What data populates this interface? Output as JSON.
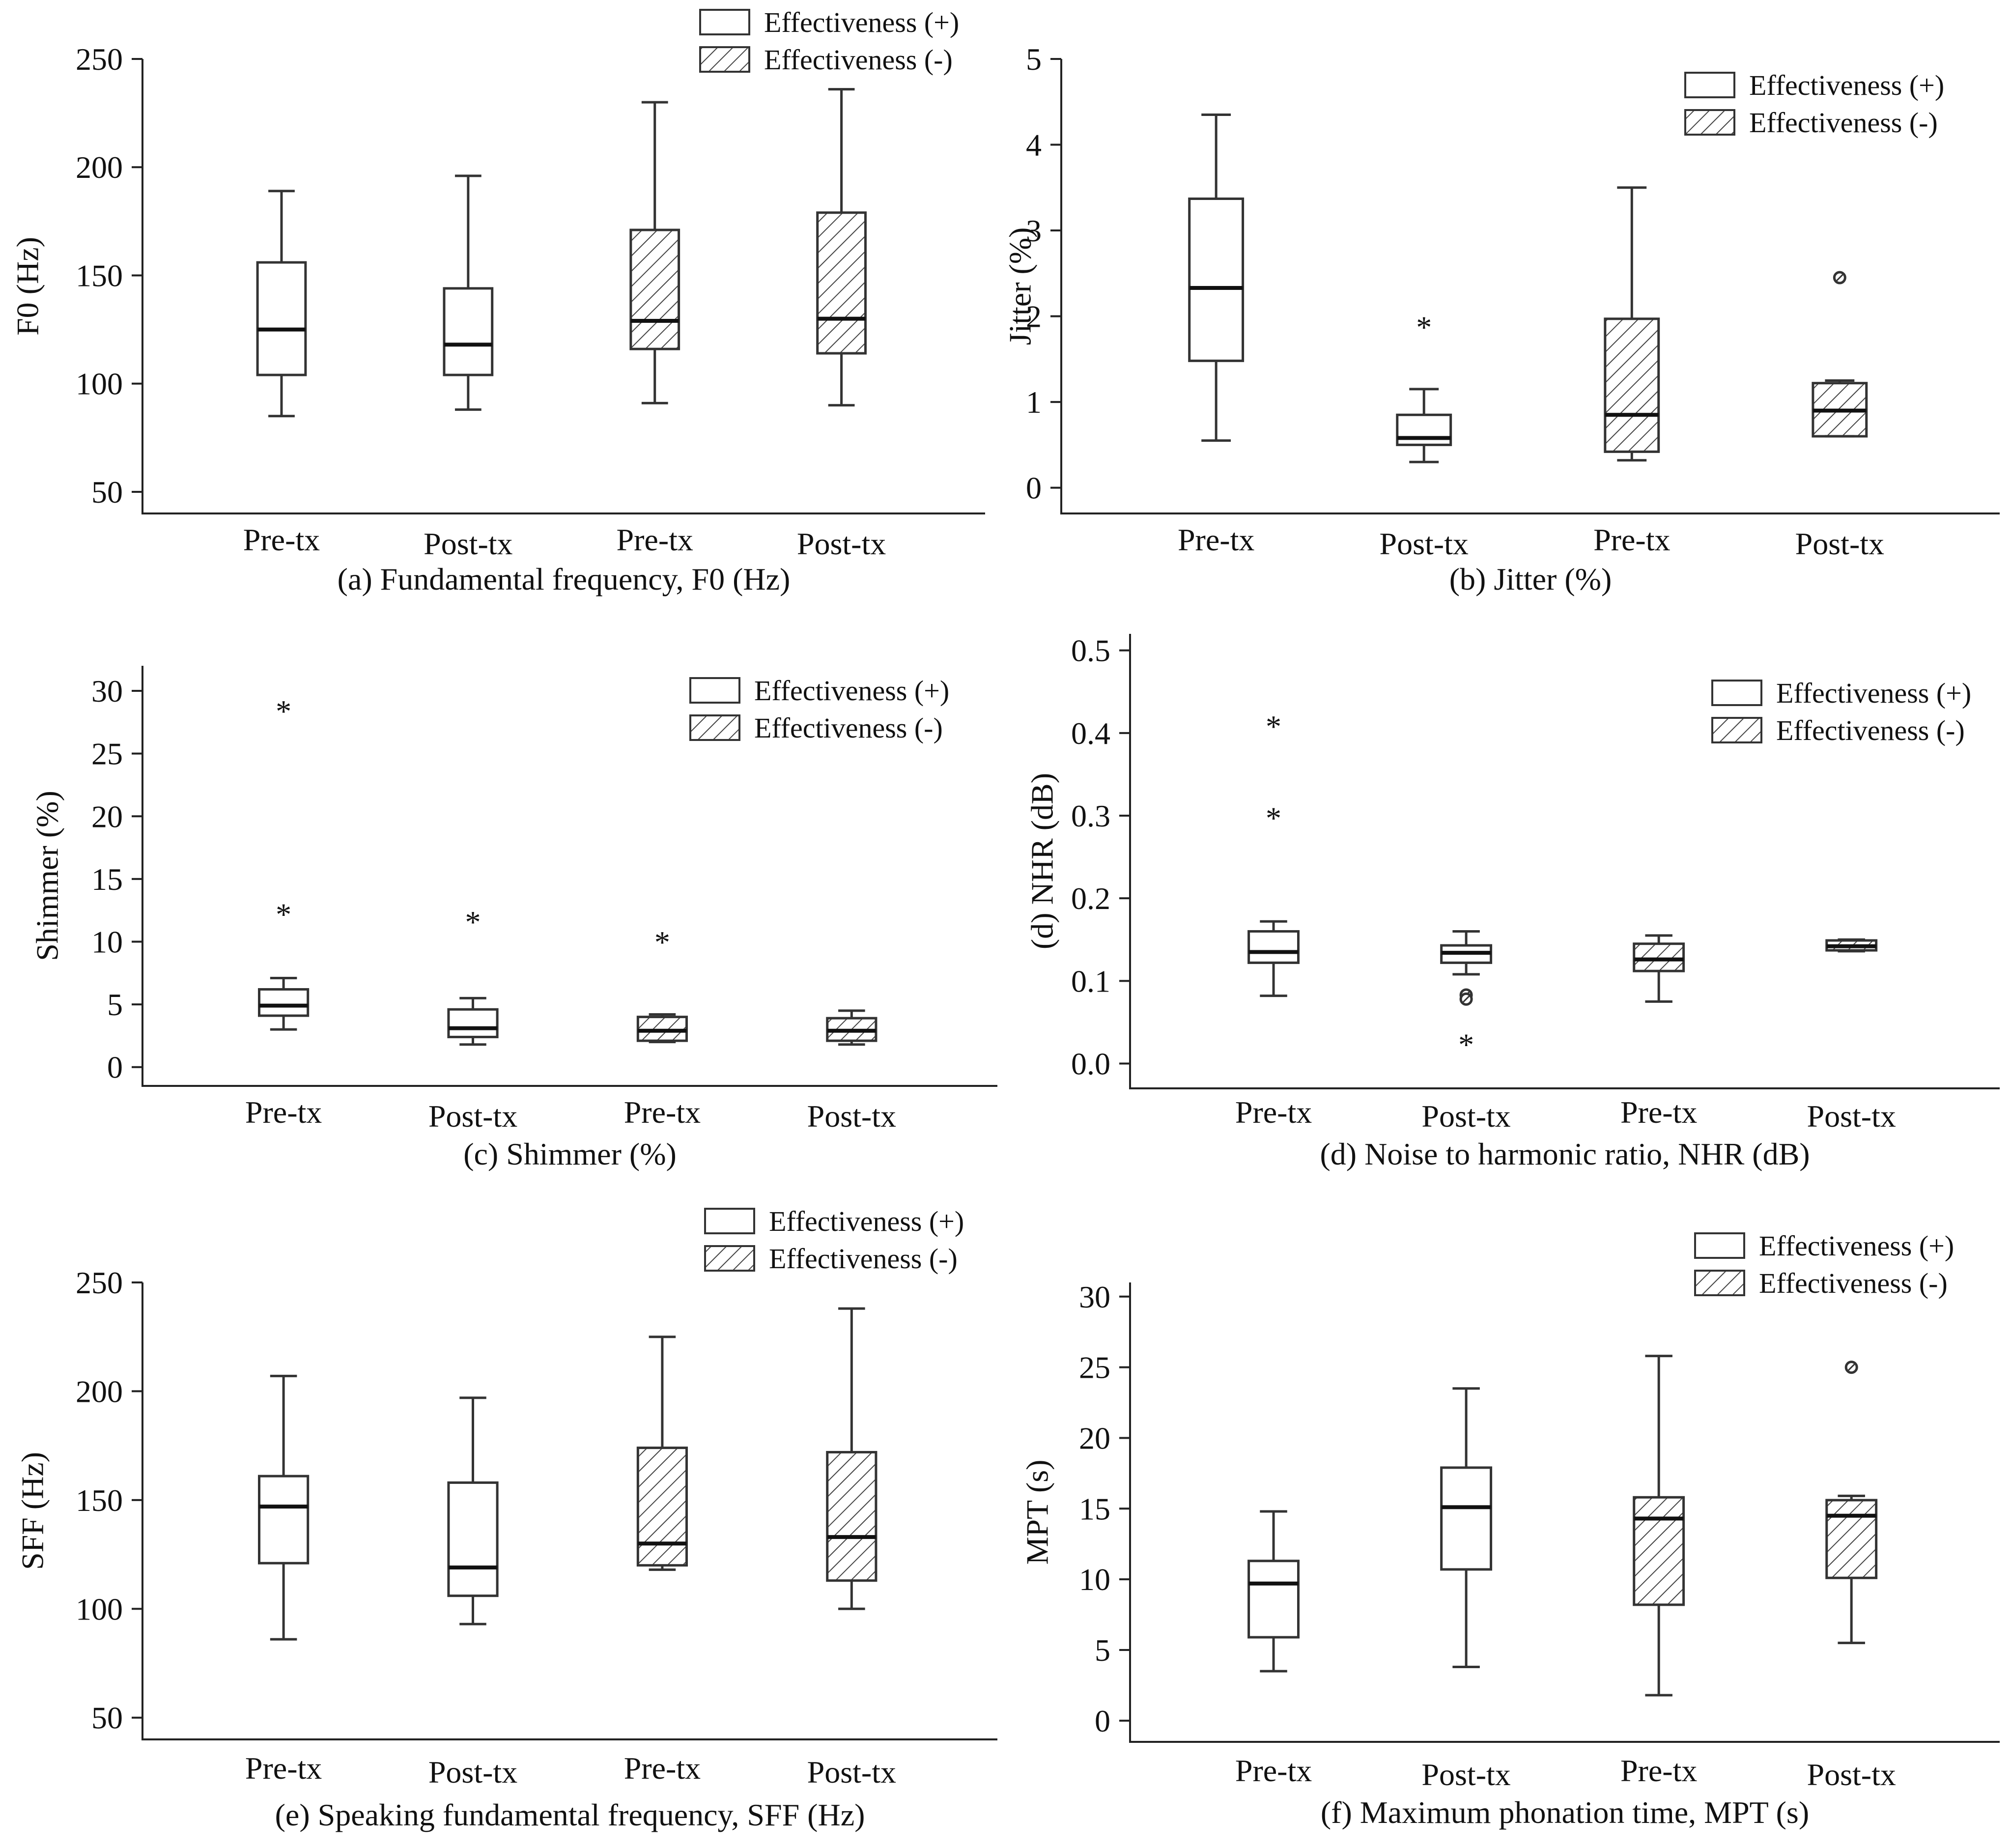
{
  "legend": {
    "plus_label": "Effectiveness (+)",
    "minus_label": "Effectiveness (-)"
  },
  "chart_data": [
    {
      "type": "box",
      "title": "(a) Fundamental frequency, F0 (Hz)",
      "ylabel": "F0 (Hz)",
      "ylim": [
        40,
        250
      ],
      "yticks": [
        "50",
        "100",
        "150",
        "200",
        "250"
      ],
      "ytick_values": [
        50,
        100,
        150,
        200,
        250
      ],
      "legend_position": "top-right",
      "categories": [
        "Pre-tx",
        "Post-tx",
        "Pre-tx",
        "Post-tx"
      ],
      "groups": [
        "Effectiveness (+)",
        "Effectiveness (+)",
        "Effectiveness (-)",
        "Effectiveness (-)"
      ],
      "boxes": [
        {
          "min": 85,
          "q1": 104,
          "median": 125,
          "q3": 156,
          "max": 189,
          "outliers": []
        },
        {
          "min": 88,
          "q1": 104,
          "median": 118,
          "q3": 144,
          "max": 196,
          "outliers": []
        },
        {
          "min": 91,
          "q1": 116,
          "median": 129,
          "q3": 171,
          "max": 230,
          "outliers": []
        },
        {
          "min": 90,
          "q1": 114,
          "median": 130,
          "q3": 179,
          "max": 236,
          "outliers": []
        }
      ]
    },
    {
      "type": "box",
      "title": "(b) Jitter (%)",
      "ylabel": "Jitter (%)",
      "ylim": [
        -0.3,
        5
      ],
      "yticks": [
        "0",
        "1",
        "2",
        "3",
        "4",
        "5"
      ],
      "ytick_values": [
        0,
        1,
        2,
        3,
        4,
        5
      ],
      "legend_position": "top-right",
      "categories": [
        "Pre-tx",
        "Post-tx",
        "Pre-tx",
        "Post-tx"
      ],
      "groups": [
        "Effectiveness (+)",
        "Effectiveness (+)",
        "Effectiveness (-)",
        "Effectiveness (-)"
      ],
      "boxes": [
        {
          "min": 0.55,
          "q1": 1.48,
          "median": 2.33,
          "q3": 3.37,
          "max": 4.35,
          "outliers": []
        },
        {
          "min": 0.3,
          "q1": 0.5,
          "median": 0.58,
          "q3": 0.85,
          "max": 1.15,
          "outliers": [
            {
              "value": 1.92,
              "marker": "star"
            }
          ]
        },
        {
          "min": 0.32,
          "q1": 0.42,
          "median": 0.85,
          "q3": 1.97,
          "max": 3.5,
          "outliers": []
        },
        {
          "min": 0.6,
          "q1": 0.6,
          "median": 0.9,
          "q3": 1.22,
          "max": 1.25,
          "outliers": [
            {
              "value": 2.45,
              "marker": "circle"
            }
          ]
        }
      ]
    },
    {
      "type": "box",
      "title": "(c) Shimmer (%)",
      "ylabel": "Shimmer (%)",
      "ylim": [
        -1.5,
        32
      ],
      "yticks": [
        "0",
        "5",
        "10",
        "15",
        "20",
        "25",
        "30"
      ],
      "ytick_values": [
        0,
        5,
        10,
        15,
        20,
        25,
        30
      ],
      "legend_position": "top-right",
      "categories": [
        "Pre-tx",
        "Post-tx",
        "Pre-tx",
        "Post-tx"
      ],
      "groups": [
        "Effectiveness (+)",
        "Effectiveness (+)",
        "Effectiveness (-)",
        "Effectiveness (-)"
      ],
      "boxes": [
        {
          "min": 3,
          "q1": 4.1,
          "median": 4.9,
          "q3": 6.2,
          "max": 7.1,
          "outliers": [
            {
              "value": 12.5,
              "marker": "star"
            },
            {
              "value": 28.7,
              "marker": "star"
            }
          ]
        },
        {
          "min": 1.8,
          "q1": 2.4,
          "median": 3.1,
          "q3": 4.6,
          "max": 5.5,
          "outliers": [
            {
              "value": 11.9,
              "marker": "star"
            }
          ]
        },
        {
          "min": 2,
          "q1": 2.1,
          "median": 2.9,
          "q3": 4,
          "max": 4.2,
          "outliers": [
            {
              "value": 10.3,
              "marker": "star"
            }
          ]
        },
        {
          "min": 1.8,
          "q1": 2.1,
          "median": 2.9,
          "q3": 3.9,
          "max": 4.5,
          "outliers": []
        }
      ]
    },
    {
      "type": "box",
      "title": "(d) Noise to harmonic ratio, NHR (dB)",
      "ylabel": "(d) NHR (dB)",
      "ylim": [
        -0.03,
        0.52
      ],
      "yticks": [
        "0.0",
        "0.1",
        "0.2",
        "0.3",
        "0.4",
        "0.5"
      ],
      "ytick_values": [
        0,
        0.1,
        0.2,
        0.3,
        0.4,
        0.5
      ],
      "legend_position": "top-right",
      "categories": [
        "Pre-tx",
        "Post-tx",
        "Pre-tx",
        "Post-tx"
      ],
      "groups": [
        "Effectiveness (+)",
        "Effectiveness (+)",
        "Effectiveness (-)",
        "Effectiveness (-)"
      ],
      "boxes": [
        {
          "min": 0.082,
          "q1": 0.122,
          "median": 0.135,
          "q3": 0.16,
          "max": 0.172,
          "outliers": [
            {
              "value": 0.302,
              "marker": "star"
            },
            {
              "value": 0.413,
              "marker": "star"
            }
          ]
        },
        {
          "min": 0.108,
          "q1": 0.122,
          "median": 0.134,
          "q3": 0.143,
          "max": 0.16,
          "outliers": [
            {
              "value": 0.083,
              "marker": "circle"
            },
            {
              "value": 0.078,
              "marker": "circle"
            },
            {
              "value": 0.028,
              "marker": "star"
            }
          ]
        },
        {
          "min": 0.075,
          "q1": 0.112,
          "median": 0.126,
          "q3": 0.145,
          "max": 0.155,
          "outliers": []
        },
        {
          "min": 0.136,
          "q1": 0.137,
          "median": 0.142,
          "q3": 0.149,
          "max": 0.15,
          "outliers": []
        }
      ]
    },
    {
      "type": "box",
      "title": "(e) Speaking fundamental frequency, SFF (Hz)",
      "ylabel": "SFF (Hz)",
      "ylim": [
        40,
        250
      ],
      "yticks": [
        "50",
        "100",
        "150",
        "200",
        "250"
      ],
      "ytick_values": [
        50,
        100,
        150,
        200,
        250
      ],
      "legend_position": "top-right",
      "categories": [
        "Pre-tx",
        "Post-tx",
        "Pre-tx",
        "Post-tx"
      ],
      "groups": [
        "Effectiveness (+)",
        "Effectiveness (+)",
        "Effectiveness (-)",
        "Effectiveness (-)"
      ],
      "boxes": [
        {
          "min": 86,
          "q1": 121,
          "median": 147,
          "q3": 161,
          "max": 207,
          "outliers": []
        },
        {
          "min": 93,
          "q1": 106,
          "median": 119,
          "q3": 158,
          "max": 197,
          "outliers": []
        },
        {
          "min": 118,
          "q1": 120,
          "median": 130,
          "q3": 174,
          "max": 225,
          "outliers": []
        },
        {
          "min": 100,
          "q1": 113,
          "median": 133,
          "q3": 172,
          "max": 238,
          "outliers": []
        }
      ]
    },
    {
      "type": "box",
      "title": "(f) Maximum phonation time, MPT (s)",
      "ylabel": "MPT (s)",
      "ylim": [
        -1.5,
        31
      ],
      "yticks": [
        "0",
        "5",
        "10",
        "15",
        "20",
        "25",
        "30"
      ],
      "ytick_values": [
        0,
        5,
        10,
        15,
        20,
        25,
        30
      ],
      "legend_position": "top-right",
      "categories": [
        "Pre-tx",
        "Post-tx",
        "Pre-tx",
        "Post-tx"
      ],
      "groups": [
        "Effectiveness (+)",
        "Effectiveness (+)",
        "Effectiveness (-)",
        "Effectiveness (-)"
      ],
      "boxes": [
        {
          "min": 3.5,
          "q1": 5.9,
          "median": 9.7,
          "q3": 11.3,
          "max": 14.8,
          "outliers": []
        },
        {
          "min": 3.8,
          "q1": 10.7,
          "median": 15.1,
          "q3": 17.9,
          "max": 23.5,
          "outliers": []
        },
        {
          "min": 1.8,
          "q1": 8.2,
          "median": 14.3,
          "q3": 15.8,
          "max": 25.8,
          "outliers": []
        },
        {
          "min": 5.5,
          "q1": 10.1,
          "median": 14.5,
          "q3": 15.6,
          "max": 15.9,
          "outliers": [
            {
              "value": 25.0,
              "marker": "circle"
            }
          ]
        }
      ]
    }
  ]
}
